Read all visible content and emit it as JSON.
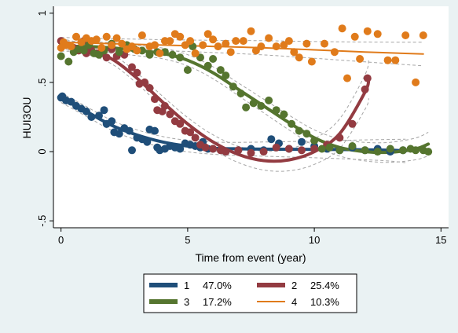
{
  "chart_data": {
    "type": "line",
    "xlabel": "Time from event (year)",
    "ylabel": "HUI3OU",
    "xlim": [
      -0.3,
      15.3
    ],
    "ylim": [
      -0.55,
      1.05
    ],
    "x_ticks": [
      "0",
      "5",
      "10",
      "15"
    ],
    "y_ticks": [
      "-.5",
      "0",
      ".5",
      "1"
    ],
    "grid": false,
    "legend_position": "bottom",
    "series": [
      {
        "name": "1",
        "share": "47.0%",
        "color": "#1f4e79",
        "line_style": "thick",
        "points": [
          [
            0,
            0.39
          ],
          [
            0.05,
            0.4
          ],
          [
            0.2,
            0.37
          ],
          [
            0.4,
            0.36
          ],
          [
            0.6,
            0.33
          ],
          [
            0.8,
            0.31
          ],
          [
            1.0,
            0.29
          ],
          [
            1.2,
            0.25
          ],
          [
            1.5,
            0.26
          ],
          [
            1.7,
            0.3
          ],
          [
            1.8,
            0.2
          ],
          [
            2.0,
            0.22
          ],
          [
            2.1,
            0.14
          ],
          [
            2.3,
            0.13
          ],
          [
            2.5,
            0.17
          ],
          [
            2.7,
            0.15
          ],
          [
            2.8,
            0.01
          ],
          [
            3.0,
            0.1
          ],
          [
            3.2,
            0.09
          ],
          [
            3.4,
            0.07
          ],
          [
            3.5,
            0.16
          ],
          [
            3.7,
            0.15
          ],
          [
            3.8,
            0.03
          ],
          [
            3.9,
            0.01
          ],
          [
            4.1,
            0.02
          ],
          [
            4.3,
            0.04
          ],
          [
            4.5,
            0.03
          ],
          [
            4.7,
            0.02
          ],
          [
            4.9,
            0.06
          ],
          [
            5.1,
            0.05
          ],
          [
            5.3,
            0.04
          ],
          [
            5.5,
            0.03
          ],
          [
            5.6,
            0.07
          ],
          [
            5.8,
            0.02
          ],
          [
            6.0,
            0.02
          ],
          [
            6.5,
            0.0
          ],
          [
            7.0,
            0.01
          ],
          [
            7.5,
            0.02
          ],
          [
            8.0,
            0.01
          ],
          [
            8.3,
            0.09
          ],
          [
            8.6,
            0.06
          ],
          [
            9.0,
            0.02
          ],
          [
            9.5,
            0.07
          ],
          [
            10.0,
            0.04
          ],
          [
            10.5,
            0.02
          ],
          [
            11.0,
            0.01
          ],
          [
            11.5,
            0.03
          ],
          [
            12.0,
            0.01
          ],
          [
            12.5,
            0.02
          ],
          [
            13.0,
            0.0
          ],
          [
            13.5,
            0.01
          ]
        ],
        "fit": [
          [
            0,
            0.39
          ],
          [
            1,
            0.29
          ],
          [
            2,
            0.19
          ],
          [
            3,
            0.12
          ],
          [
            4,
            0.07
          ],
          [
            5,
            0.04
          ],
          [
            6,
            0.025
          ],
          [
            7,
            0.02
          ],
          [
            8,
            0.018
          ],
          [
            9,
            0.017
          ],
          [
            10,
            0.016
          ],
          [
            11,
            0.015
          ],
          [
            12,
            0.013
          ],
          [
            13,
            0.01
          ],
          [
            13.6,
            0.005
          ]
        ]
      },
      {
        "name": "2",
        "share": "25.4%",
        "color": "#933b41",
        "line_style": "thick",
        "points": [
          [
            0,
            0.8
          ],
          [
            0.2,
            0.77
          ],
          [
            0.5,
            0.75
          ],
          [
            0.7,
            0.73
          ],
          [
            0.9,
            0.8
          ],
          [
            1.0,
            0.71
          ],
          [
            1.2,
            0.73
          ],
          [
            1.4,
            0.71
          ],
          [
            1.6,
            0.71
          ],
          [
            1.8,
            0.68
          ],
          [
            2.0,
            0.74
          ],
          [
            2.2,
            0.69
          ],
          [
            2.5,
            0.7
          ],
          [
            2.8,
            0.61
          ],
          [
            3.0,
            0.57
          ],
          [
            3.1,
            0.49
          ],
          [
            3.3,
            0.5
          ],
          [
            3.5,
            0.46
          ],
          [
            3.7,
            0.38
          ],
          [
            3.8,
            0.3
          ],
          [
            4.0,
            0.29
          ],
          [
            4.1,
            0.33
          ],
          [
            4.3,
            0.27
          ],
          [
            4.5,
            0.22
          ],
          [
            4.7,
            0.2
          ],
          [
            4.9,
            0.15
          ],
          [
            5.1,
            0.14
          ],
          [
            5.3,
            0.1
          ],
          [
            5.5,
            0.05
          ],
          [
            5.7,
            0.03
          ],
          [
            6.0,
            0.02
          ],
          [
            6.3,
            0.01
          ],
          [
            6.5,
            0.0
          ],
          [
            7.0,
            0.01
          ],
          [
            7.5,
            -0.01
          ],
          [
            8.0,
            0.0
          ],
          [
            8.5,
            0.03
          ],
          [
            9.0,
            0.02
          ],
          [
            9.5,
            0.01
          ],
          [
            10.0,
            0.02
          ],
          [
            10.5,
            0.05
          ],
          [
            11.0,
            0.1
          ],
          [
            11.5,
            0.2
          ],
          [
            12.0,
            0.45
          ],
          [
            12.1,
            0.53
          ]
        ],
        "fit": [
          [
            0,
            0.78
          ],
          [
            1,
            0.74
          ],
          [
            2,
            0.67
          ],
          [
            3,
            0.53
          ],
          [
            4,
            0.36
          ],
          [
            5,
            0.2
          ],
          [
            6,
            0.07
          ],
          [
            7,
            -0.02
          ],
          [
            8,
            -0.065
          ],
          [
            9,
            -0.06
          ],
          [
            10,
            0.0
          ],
          [
            11,
            0.13
          ],
          [
            12,
            0.43
          ],
          [
            12.15,
            0.53
          ]
        ]
      },
      {
        "name": "3",
        "share": "17.2%",
        "color": "#55752f",
        "line_style": "thick",
        "points": [
          [
            0,
            0.69
          ],
          [
            0.1,
            0.77
          ],
          [
            0.3,
            0.65
          ],
          [
            0.5,
            0.72
          ],
          [
            0.7,
            0.74
          ],
          [
            0.9,
            0.73
          ],
          [
            1.1,
            0.77
          ],
          [
            1.3,
            0.71
          ],
          [
            1.5,
            0.7
          ],
          [
            1.7,
            0.73
          ],
          [
            2.0,
            0.78
          ],
          [
            2.3,
            0.72
          ],
          [
            2.6,
            0.77
          ],
          [
            2.9,
            0.74
          ],
          [
            3.2,
            0.73
          ],
          [
            3.5,
            0.7
          ],
          [
            3.8,
            0.72
          ],
          [
            4.1,
            0.72
          ],
          [
            4.4,
            0.7
          ],
          [
            4.7,
            0.68
          ],
          [
            5.0,
            0.59
          ],
          [
            5.2,
            0.76
          ],
          [
            5.5,
            0.68
          ],
          [
            5.8,
            0.62
          ],
          [
            6.0,
            0.67
          ],
          [
            6.3,
            0.59
          ],
          [
            6.5,
            0.55
          ],
          [
            6.8,
            0.47
          ],
          [
            7.1,
            0.42
          ],
          [
            7.3,
            0.32
          ],
          [
            7.6,
            0.35
          ],
          [
            7.9,
            0.33
          ],
          [
            8.2,
            0.37
          ],
          [
            8.5,
            0.3
          ],
          [
            8.8,
            0.27
          ],
          [
            9.1,
            0.2
          ],
          [
            9.4,
            0.15
          ],
          [
            9.7,
            0.13
          ],
          [
            10.0,
            0.08
          ],
          [
            10.3,
            0.02
          ],
          [
            10.6,
            0.03
          ],
          [
            11.0,
            0.01
          ],
          [
            11.5,
            0.04
          ],
          [
            12.0,
            0.01
          ],
          [
            12.5,
            0.0
          ],
          [
            13.0,
            0.02
          ],
          [
            13.5,
            0.01
          ],
          [
            13.8,
            0.02
          ],
          [
            14.0,
            0.01
          ],
          [
            14.3,
            0.01
          ],
          [
            14.5,
            0.0
          ]
        ],
        "fit": [
          [
            0,
            0.76
          ],
          [
            1,
            0.76
          ],
          [
            2,
            0.75
          ],
          [
            3,
            0.73
          ],
          [
            4,
            0.71
          ],
          [
            5,
            0.66
          ],
          [
            6,
            0.57
          ],
          [
            7,
            0.45
          ],
          [
            8,
            0.33
          ],
          [
            9,
            0.21
          ],
          [
            10,
            0.1
          ],
          [
            11,
            0.03
          ],
          [
            12,
            0.0
          ],
          [
            13,
            -0.005
          ],
          [
            14,
            0.02
          ],
          [
            14.5,
            0.055
          ]
        ]
      },
      {
        "name": "4",
        "share": "10.3%",
        "color": "#e07b1b",
        "line_style": "thin",
        "points": [
          [
            0,
            0.75
          ],
          [
            0.1,
            0.79
          ],
          [
            0.2,
            0.77
          ],
          [
            0.4,
            0.76
          ],
          [
            0.6,
            0.83
          ],
          [
            0.8,
            0.79
          ],
          [
            1.0,
            0.82
          ],
          [
            1.2,
            0.8
          ],
          [
            1.4,
            0.81
          ],
          [
            1.6,
            0.75
          ],
          [
            1.8,
            0.83
          ],
          [
            2.0,
            0.77
          ],
          [
            2.2,
            0.82
          ],
          [
            2.4,
            0.78
          ],
          [
            2.6,
            0.74
          ],
          [
            2.8,
            0.76
          ],
          [
            3.0,
            0.73
          ],
          [
            3.2,
            0.84
          ],
          [
            3.5,
            0.76
          ],
          [
            3.7,
            0.77
          ],
          [
            3.9,
            0.71
          ],
          [
            4.1,
            0.8
          ],
          [
            4.3,
            0.8
          ],
          [
            4.5,
            0.85
          ],
          [
            4.7,
            0.83
          ],
          [
            4.9,
            0.77
          ],
          [
            5.1,
            0.8
          ],
          [
            5.3,
            0.71
          ],
          [
            5.6,
            0.77
          ],
          [
            5.8,
            0.85
          ],
          [
            6.0,
            0.81
          ],
          [
            6.2,
            0.76
          ],
          [
            6.5,
            0.78
          ],
          [
            6.7,
            0.72
          ],
          [
            6.9,
            0.8
          ],
          [
            7.2,
            0.8
          ],
          [
            7.5,
            0.87
          ],
          [
            7.7,
            0.73
          ],
          [
            7.9,
            0.76
          ],
          [
            8.2,
            0.82
          ],
          [
            8.5,
            0.76
          ],
          [
            8.8,
            0.77
          ],
          [
            9.0,
            0.8
          ],
          [
            9.2,
            0.72
          ],
          [
            9.4,
            0.68
          ],
          [
            9.7,
            0.78
          ],
          [
            9.9,
            0.65
          ],
          [
            10.4,
            0.78
          ],
          [
            10.8,
            0.72
          ],
          [
            11.1,
            0.89
          ],
          [
            11.3,
            0.53
          ],
          [
            11.6,
            0.83
          ],
          [
            11.8,
            0.67
          ],
          [
            12.1,
            0.87
          ],
          [
            12.5,
            0.85
          ],
          [
            12.9,
            0.66
          ],
          [
            13.2,
            0.66
          ],
          [
            13.6,
            0.84
          ],
          [
            14.0,
            0.5
          ],
          [
            14.3,
            0.84
          ]
        ],
        "fit": [
          [
            0,
            0.79
          ],
          [
            2,
            0.78
          ],
          [
            4,
            0.77
          ],
          [
            6,
            0.76
          ],
          [
            8,
            0.75
          ],
          [
            10,
            0.735
          ],
          [
            12,
            0.72
          ],
          [
            14.3,
            0.705
          ]
        ]
      }
    ]
  }
}
